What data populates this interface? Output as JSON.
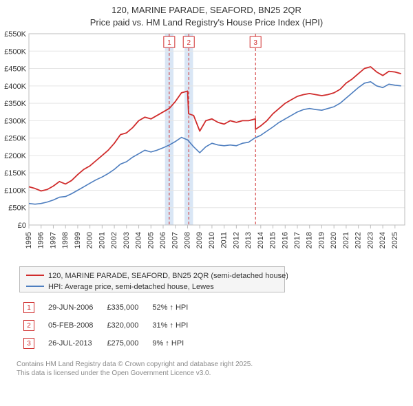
{
  "title": {
    "line1": "120, MARINE PARADE, SEAFORD, BN25 2QR",
    "line2": "Price paid vs. HM Land Registry's House Price Index (HPI)"
  },
  "chart": {
    "type": "line",
    "background_color": "#ffffff",
    "plot_bg": "#ffffff",
    "grid_color": "#e5e5e5",
    "axis_color": "#bcbcbc",
    "font_size": 11,
    "x": {
      "min": 1995,
      "max": 2025.8,
      "ticks": [
        1995,
        1996,
        1997,
        1998,
        1999,
        2000,
        2001,
        2002,
        2003,
        2004,
        2005,
        2006,
        2007,
        2008,
        2009,
        2010,
        2011,
        2012,
        2013,
        2014,
        2015,
        2016,
        2017,
        2018,
        2019,
        2020,
        2021,
        2022,
        2023,
        2024,
        2025
      ],
      "tick_labels": [
        "1995",
        "1996",
        "1997",
        "1998",
        "1999",
        "2000",
        "2001",
        "2002",
        "2003",
        "2004",
        "2005",
        "2006",
        "2007",
        "2008",
        "2009",
        "2010",
        "2011",
        "2012",
        "2013",
        "2014",
        "2015",
        "2016",
        "2017",
        "2018",
        "2019",
        "2020",
        "2021",
        "2022",
        "2023",
        "2024",
        "2025"
      ]
    },
    "y": {
      "min": 0,
      "max": 550000,
      "ticks": [
        0,
        50000,
        100000,
        150000,
        200000,
        250000,
        300000,
        350000,
        400000,
        450000,
        500000,
        550000
      ],
      "tick_labels": [
        "£0",
        "£50K",
        "£100K",
        "£150K",
        "£200K",
        "£250K",
        "£300K",
        "£350K",
        "£400K",
        "£450K",
        "£500K",
        "£550K"
      ]
    },
    "events": [
      {
        "n": "1",
        "x": 2006.5,
        "band": true,
        "band_color": "#d9e6f5"
      },
      {
        "n": "2",
        "x": 2008.1,
        "band": true,
        "band_color": "#d9e6f5"
      },
      {
        "n": "3",
        "x": 2013.57,
        "band": false
      }
    ],
    "event_line_color": "#d02c2c",
    "event_line_dash": "4 3",
    "series": [
      {
        "name": "property",
        "label": "120, MARINE PARADE, SEAFORD, BN25 2QR (semi-detached house)",
        "color": "#d02c2c",
        "width": 1.8,
        "points": [
          [
            1995,
            110000
          ],
          [
            1995.5,
            105000
          ],
          [
            1996,
            98000
          ],
          [
            1996.5,
            102000
          ],
          [
            1997,
            112000
          ],
          [
            1997.5,
            125000
          ],
          [
            1998,
            118000
          ],
          [
            1998.5,
            128000
          ],
          [
            1999,
            145000
          ],
          [
            1999.5,
            160000
          ],
          [
            2000,
            170000
          ],
          [
            2000.5,
            185000
          ],
          [
            2001,
            200000
          ],
          [
            2001.5,
            215000
          ],
          [
            2002,
            235000
          ],
          [
            2002.5,
            260000
          ],
          [
            2003,
            265000
          ],
          [
            2003.5,
            280000
          ],
          [
            2004,
            300000
          ],
          [
            2004.5,
            310000
          ],
          [
            2005,
            305000
          ],
          [
            2005.5,
            315000
          ],
          [
            2006,
            325000
          ],
          [
            2006.49,
            335000
          ],
          [
            2006.5,
            335000
          ],
          [
            2007,
            355000
          ],
          [
            2007.5,
            380000
          ],
          [
            2008,
            385000
          ],
          [
            2008.09,
            320000
          ],
          [
            2008.5,
            315000
          ],
          [
            2009,
            270000
          ],
          [
            2009.5,
            300000
          ],
          [
            2010,
            305000
          ],
          [
            2010.5,
            295000
          ],
          [
            2011,
            290000
          ],
          [
            2011.5,
            300000
          ],
          [
            2012,
            295000
          ],
          [
            2012.5,
            300000
          ],
          [
            2013,
            300000
          ],
          [
            2013.56,
            305000
          ],
          [
            2013.57,
            275000
          ],
          [
            2014,
            285000
          ],
          [
            2014.5,
            300000
          ],
          [
            2015,
            320000
          ],
          [
            2015.5,
            335000
          ],
          [
            2016,
            350000
          ],
          [
            2016.5,
            360000
          ],
          [
            2017,
            370000
          ],
          [
            2017.5,
            375000
          ],
          [
            2018,
            378000
          ],
          [
            2018.5,
            375000
          ],
          [
            2019,
            372000
          ],
          [
            2019.5,
            375000
          ],
          [
            2020,
            380000
          ],
          [
            2020.5,
            390000
          ],
          [
            2021,
            408000
          ],
          [
            2021.5,
            420000
          ],
          [
            2022,
            435000
          ],
          [
            2022.5,
            450000
          ],
          [
            2023,
            455000
          ],
          [
            2023.5,
            440000
          ],
          [
            2024,
            430000
          ],
          [
            2024.5,
            442000
          ],
          [
            2025,
            440000
          ],
          [
            2025.5,
            435000
          ]
        ]
      },
      {
        "name": "hpi",
        "label": "HPI: Average price, semi-detached house, Lewes",
        "color": "#4e7ebf",
        "width": 1.6,
        "points": [
          [
            1995,
            62000
          ],
          [
            1995.5,
            60000
          ],
          [
            1996,
            62000
          ],
          [
            1996.5,
            66000
          ],
          [
            1997,
            72000
          ],
          [
            1997.5,
            80000
          ],
          [
            1998,
            82000
          ],
          [
            1998.5,
            90000
          ],
          [
            1999,
            100000
          ],
          [
            1999.5,
            110000
          ],
          [
            2000,
            120000
          ],
          [
            2000.5,
            130000
          ],
          [
            2001,
            138000
          ],
          [
            2001.5,
            148000
          ],
          [
            2002,
            160000
          ],
          [
            2002.5,
            175000
          ],
          [
            2003,
            182000
          ],
          [
            2003.5,
            195000
          ],
          [
            2004,
            205000
          ],
          [
            2004.5,
            215000
          ],
          [
            2005,
            210000
          ],
          [
            2005.5,
            215000
          ],
          [
            2006,
            222000
          ],
          [
            2006.5,
            230000
          ],
          [
            2007,
            240000
          ],
          [
            2007.5,
            252000
          ],
          [
            2008,
            245000
          ],
          [
            2008.5,
            225000
          ],
          [
            2009,
            208000
          ],
          [
            2009.5,
            225000
          ],
          [
            2010,
            235000
          ],
          [
            2010.5,
            230000
          ],
          [
            2011,
            228000
          ],
          [
            2011.5,
            230000
          ],
          [
            2012,
            228000
          ],
          [
            2012.5,
            235000
          ],
          [
            2013,
            238000
          ],
          [
            2013.5,
            250000
          ],
          [
            2014,
            258000
          ],
          [
            2014.5,
            270000
          ],
          [
            2015,
            282000
          ],
          [
            2015.5,
            295000
          ],
          [
            2016,
            305000
          ],
          [
            2016.5,
            315000
          ],
          [
            2017,
            325000
          ],
          [
            2017.5,
            332000
          ],
          [
            2018,
            335000
          ],
          [
            2018.5,
            332000
          ],
          [
            2019,
            330000
          ],
          [
            2019.5,
            335000
          ],
          [
            2020,
            340000
          ],
          [
            2020.5,
            350000
          ],
          [
            2021,
            365000
          ],
          [
            2021.5,
            380000
          ],
          [
            2022,
            395000
          ],
          [
            2022.5,
            408000
          ],
          [
            2023,
            412000
          ],
          [
            2023.5,
            400000
          ],
          [
            2024,
            395000
          ],
          [
            2024.5,
            405000
          ],
          [
            2025,
            402000
          ],
          [
            2025.5,
            400000
          ]
        ]
      }
    ]
  },
  "legend": {
    "items": [
      {
        "label": "120, MARINE PARADE, SEAFORD, BN25 2QR (semi-detached house)",
        "color": "#d02c2c"
      },
      {
        "label": "HPI: Average price, semi-detached house, Lewes",
        "color": "#4e7ebf"
      }
    ]
  },
  "events_table": [
    {
      "n": "1",
      "date": "29-JUN-2006",
      "price": "£335,000",
      "vs_hpi": "52% ↑ HPI"
    },
    {
      "n": "2",
      "date": "05-FEB-2008",
      "price": "£320,000",
      "vs_hpi": "31% ↑ HPI"
    },
    {
      "n": "3",
      "date": "26-JUL-2013",
      "price": "£275,000",
      "vs_hpi": "9% ↑ HPI"
    }
  ],
  "footer": {
    "line1": "Contains HM Land Registry data © Crown copyright and database right 2025.",
    "line2": "This data is licensed under the Open Government Licence v3.0."
  }
}
